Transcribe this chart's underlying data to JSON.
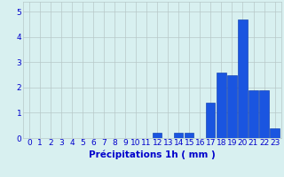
{
  "categories": [
    0,
    1,
    2,
    3,
    4,
    5,
    6,
    7,
    8,
    9,
    10,
    11,
    12,
    13,
    14,
    15,
    16,
    17,
    18,
    19,
    20,
    21,
    22,
    23
  ],
  "values": [
    0,
    0,
    0,
    0,
    0,
    0,
    0,
    0,
    0,
    0,
    0,
    0,
    0.2,
    0,
    0.2,
    0.2,
    0,
    1.4,
    2.6,
    2.5,
    4.7,
    1.9,
    1.9,
    0.4
  ],
  "bar_color": "#1a55e0",
  "bar_edge_color": "#0030aa",
  "background_color": "#d8f0f0",
  "grid_color": "#b8c8c8",
  "xlabel": "Précipitations 1h ( mm )",
  "ylim": [
    0,
    5.4
  ],
  "yticks": [
    0,
    1,
    2,
    3,
    4,
    5
  ],
  "xlabel_color": "#0000cc",
  "tick_color": "#0000cc",
  "xlabel_fontsize": 7.5,
  "tick_fontsize": 6.5
}
